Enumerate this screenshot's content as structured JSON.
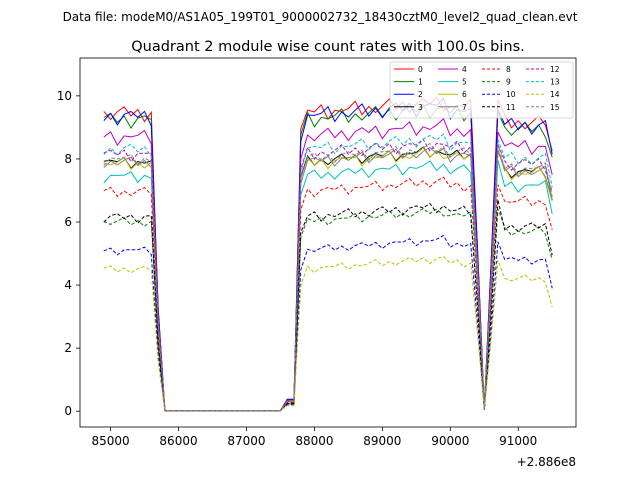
{
  "suptitle": "Data file: modeM0/AS1A05_199T01_9000002732_18430cztM0_level2_quad_clean.evt",
  "chart_data": {
    "type": "line",
    "title": "Quadrant 2 module wise count rates with 100.0s bins.",
    "xlabel": "",
    "ylabel": "",
    "x_offset_label": "+2.886e8",
    "x_start": 84900,
    "x_step": 100,
    "xlim": [
      84550,
      91850
    ],
    "ylim": [
      -0.5,
      11.2
    ],
    "xticks": [
      85000,
      86000,
      87000,
      88000,
      89000,
      90000,
      91000
    ],
    "xtick_labels": [
      "85000",
      "86000",
      "87000",
      "88000",
      "89000",
      "90000",
      "91000"
    ],
    "yticks": [
      0,
      2,
      4,
      6,
      8,
      10
    ],
    "ytick_labels": [
      "0",
      "2",
      "4",
      "6",
      "8",
      "10"
    ],
    "grid": false,
    "legend_position": "top-right",
    "series": [
      {
        "name": "0",
        "color": "#ff0000",
        "dashed": false,
        "base": 9.45,
        "offgap": 4.1,
        "amp": 0.3,
        "phase": 0.0
      },
      {
        "name": "1",
        "color": "#008000",
        "dashed": false,
        "base": 9.25,
        "offgap": 3.8,
        "amp": 0.3,
        "phase": 1.1
      },
      {
        "name": "2",
        "color": "#0000ff",
        "dashed": false,
        "base": 9.35,
        "offgap": 4.0,
        "amp": 0.32,
        "phase": 2.3
      },
      {
        "name": "3",
        "color": "#000000",
        "dashed": false,
        "base": 7.9,
        "offgap": 3.2,
        "amp": 0.22,
        "phase": 0.7
      },
      {
        "name": "4",
        "color": "#bf00bf",
        "dashed": false,
        "base": 8.7,
        "offgap": 3.6,
        "amp": 0.28,
        "phase": 1.9
      },
      {
        "name": "5",
        "color": "#00bfbf",
        "dashed": false,
        "base": 7.45,
        "offgap": 3.1,
        "amp": 0.22,
        "phase": 3.1
      },
      {
        "name": "6",
        "color": "#bfbf00",
        "dashed": false,
        "base": 7.85,
        "offgap": 3.3,
        "amp": 0.25,
        "phase": 0.4
      },
      {
        "name": "7",
        "color": "#808080",
        "dashed": false,
        "base": 7.9,
        "offgap": 3.4,
        "amp": 0.22,
        "phase": 2.7
      },
      {
        "name": "8",
        "color": "#ff0000",
        "dashed": true,
        "base": 6.95,
        "offgap": 2.8,
        "amp": 0.2,
        "phase": 1.5
      },
      {
        "name": "9",
        "color": "#008000",
        "dashed": true,
        "base": 6.0,
        "offgap": 2.4,
        "amp": 0.18,
        "phase": 0.2
      },
      {
        "name": "10",
        "color": "#0000ff",
        "dashed": true,
        "base": 5.1,
        "offgap": 2.1,
        "amp": 0.15,
        "phase": 2.0
      },
      {
        "name": "11",
        "color": "#000000",
        "dashed": true,
        "base": 6.15,
        "offgap": 2.5,
        "amp": 0.2,
        "phase": 3.5
      },
      {
        "name": "12",
        "color": "#bf00bf",
        "dashed": true,
        "base": 8.15,
        "offgap": 3.4,
        "amp": 0.25,
        "phase": 0.9
      },
      {
        "name": "13",
        "color": "#00bfbf",
        "dashed": true,
        "base": 8.3,
        "offgap": 3.5,
        "amp": 0.25,
        "phase": 2.5
      },
      {
        "name": "14",
        "color": "#bfbf00",
        "dashed": true,
        "base": 4.5,
        "offgap": 1.9,
        "amp": 0.15,
        "phase": 1.3
      },
      {
        "name": "15",
        "color": "#808080",
        "dashed": true,
        "base": 8.0,
        "offgap": 3.3,
        "amp": 0.22,
        "phase": 3.0
      }
    ]
  }
}
